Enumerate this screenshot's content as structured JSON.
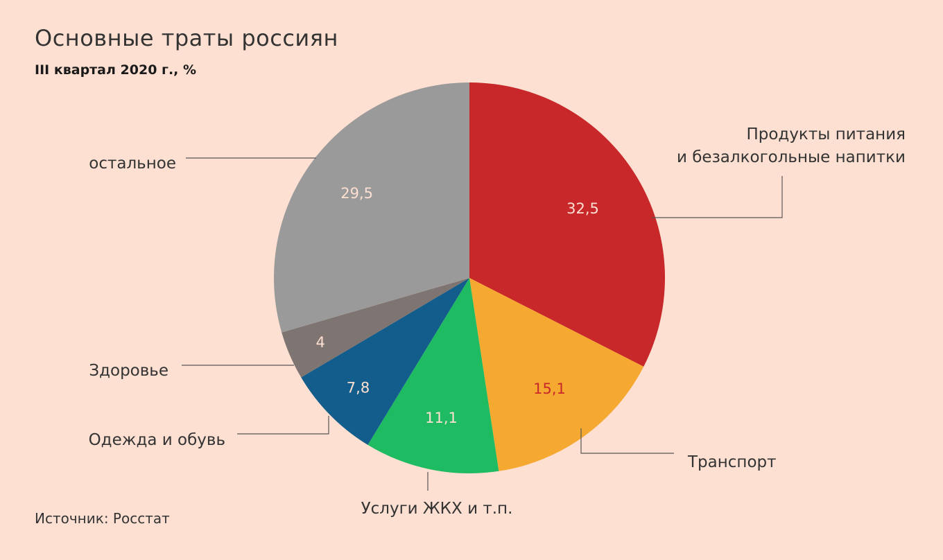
{
  "title": "Основные траты россиян",
  "subtitle": "III квартал 2020 г., %",
  "source": "Источник: Росстат",
  "chart_data": {
    "type": "pie",
    "title": "Основные траты россиян",
    "subtitle": "III квартал 2020 г., %",
    "start_angle_deg": 0,
    "direction": "clockwise",
    "slices": [
      {
        "label_lines": [
          "Продукты питания",
          "и безалкогольные напитки"
        ],
        "value": 32.5,
        "value_text": "32,5",
        "color": "#c8282a",
        "value_color": "#fde0d2"
      },
      {
        "label_lines": [
          "Транспорт"
        ],
        "value": 15.1,
        "value_text": "15,1",
        "color": "#f5a931",
        "value_color": "#c8282a"
      },
      {
        "label_lines": [
          "Услуги ЖКХ и т.п."
        ],
        "value": 11.1,
        "value_text": "11,1",
        "color": "#1fbb63",
        "value_color": "#fde0d2"
      },
      {
        "label_lines": [
          "Одежда и обувь"
        ],
        "value": 7.8,
        "value_text": "7,8",
        "color": "#125d8b",
        "value_color": "#fde0d2"
      },
      {
        "label_lines": [
          "Здоровье"
        ],
        "value": 4,
        "value_text": "4",
        "color": "#7e7471",
        "value_color": "#fde0d2"
      },
      {
        "label_lines": [
          "остальное"
        ],
        "value": 29.5,
        "value_text": "29,5",
        "color": "#9a9a9a",
        "value_color": "#fde0d2"
      }
    ]
  }
}
